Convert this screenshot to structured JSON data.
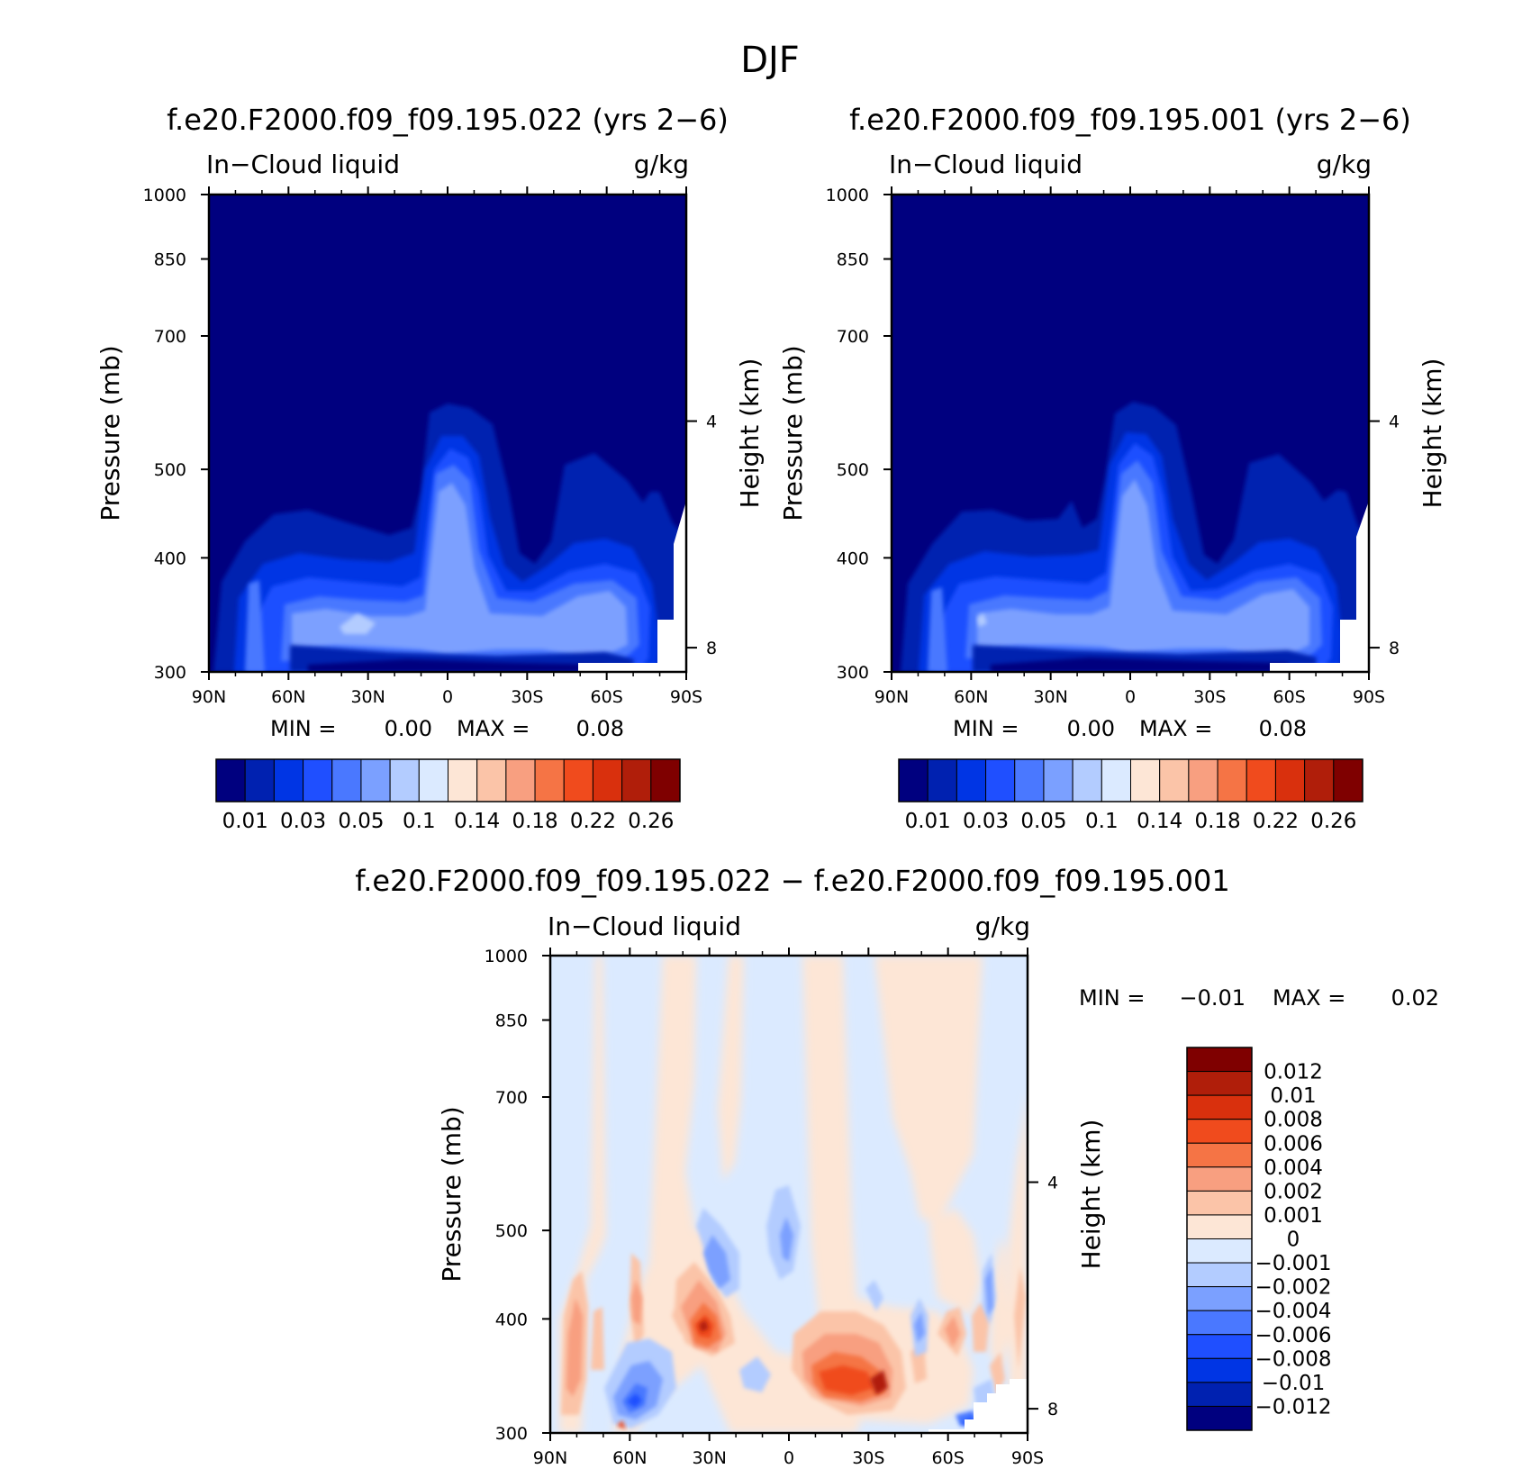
{
  "figure_title": "DJF",
  "chart_data": [
    {
      "type": "heatmap",
      "subtype": "latitude-pressure filled contour",
      "panel": "top-left",
      "title": "f.e20.F2000.f09_f09.195.022 (yrs 2−6)",
      "left_string": "In−Cloud liquid",
      "right_string": "g/kg",
      "xlabel": "",
      "ylabel": "Pressure (mb)",
      "y2label": "Height (km)",
      "xticks": [
        "90N",
        "60N",
        "30N",
        "0",
        "30S",
        "60S",
        "90S"
      ],
      "yticks": [
        "300",
        "400",
        "500",
        "700",
        "850",
        "1000"
      ],
      "y2ticks": [
        "8",
        "4"
      ],
      "ylim": [
        1000,
        300
      ],
      "min_label": "MIN =",
      "min_value": "0.00",
      "max_label": "MAX =",
      "max_value": "0.08",
      "colorbar": {
        "orientation": "horizontal",
        "colors": [
          "#00007f",
          "#0021b0",
          "#0035e4",
          "#1f4fff",
          "#4a78ff",
          "#7ba0ff",
          "#b3ccff",
          "#dbeaff",
          "#fde6d6",
          "#fbc4a8",
          "#f89f80",
          "#f57445",
          "#f04b1d",
          "#d9300d",
          "#b01e0a",
          "#7f0000"
        ],
        "labels": [
          "0.01",
          "0.03",
          "0.05",
          "0.1",
          "0.14",
          "0.18",
          "0.22",
          "0.26"
        ]
      },
      "contour_levels": [
        0.005,
        0.01,
        0.02,
        0.03,
        0.04,
        0.05,
        0.075
      ]
    },
    {
      "type": "heatmap",
      "subtype": "latitude-pressure filled contour",
      "panel": "top-right",
      "title": "f.e20.F2000.f09_f09.195.001 (yrs 2−6)",
      "left_string": "In−Cloud liquid",
      "right_string": "g/kg",
      "xlabel": "",
      "ylabel": "Pressure (mb)",
      "y2label": "Height (km)",
      "xticks": [
        "90N",
        "60N",
        "30N",
        "0",
        "30S",
        "60S",
        "90S"
      ],
      "yticks": [
        "300",
        "400",
        "500",
        "700",
        "850",
        "1000"
      ],
      "y2ticks": [
        "8",
        "4"
      ],
      "ylim": [
        1000,
        300
      ],
      "min_label": "MIN =",
      "min_value": "0.00",
      "max_label": "MAX =",
      "max_value": "0.08",
      "colorbar": {
        "orientation": "horizontal",
        "colors": [
          "#00007f",
          "#0021b0",
          "#0035e4",
          "#1f4fff",
          "#4a78ff",
          "#7ba0ff",
          "#b3ccff",
          "#dbeaff",
          "#fde6d6",
          "#fbc4a8",
          "#f89f80",
          "#f57445",
          "#f04b1d",
          "#d9300d",
          "#b01e0a",
          "#7f0000"
        ],
        "labels": [
          "0.01",
          "0.03",
          "0.05",
          "0.1",
          "0.14",
          "0.18",
          "0.22",
          "0.26"
        ]
      },
      "contour_levels": [
        0.005,
        0.01,
        0.02,
        0.03,
        0.04,
        0.05,
        0.075
      ]
    },
    {
      "type": "heatmap",
      "subtype": "latitude-pressure difference filled contour",
      "panel": "bottom",
      "title": "f.e20.F2000.f09_f09.195.022 − f.e20.F2000.f09_f09.195.001",
      "left_string": "In−Cloud liquid",
      "right_string": "g/kg",
      "xlabel": "",
      "ylabel": "Pressure (mb)",
      "y2label": "Height (km)",
      "xticks": [
        "90N",
        "60N",
        "30N",
        "0",
        "30S",
        "60S",
        "90S"
      ],
      "yticks": [
        "300",
        "400",
        "500",
        "700",
        "850",
        "1000"
      ],
      "y2ticks": [
        "8",
        "4"
      ],
      "ylim": [
        1000,
        300
      ],
      "min_label": "MIN =",
      "min_value": "−0.01",
      "max_label": "MAX =",
      "max_value": "0.02",
      "colorbar": {
        "orientation": "vertical",
        "colors": [
          "#7f0000",
          "#b01e0a",
          "#d9300d",
          "#f04b1d",
          "#f57445",
          "#f89f80",
          "#fbc4a8",
          "#fde6d6",
          "#dbeaff",
          "#b3ccff",
          "#7ba0ff",
          "#4a78ff",
          "#1f4fff",
          "#0035e4",
          "#0021b0",
          "#00007f"
        ],
        "labels": [
          "0.012",
          "0.01",
          "0.008",
          "0.006",
          "0.004",
          "0.002",
          "0.001",
          "0",
          "−0.001",
          "−0.002",
          "−0.004",
          "−0.006",
          "−0.008",
          "−0.01",
          "−0.012"
        ]
      }
    }
  ]
}
